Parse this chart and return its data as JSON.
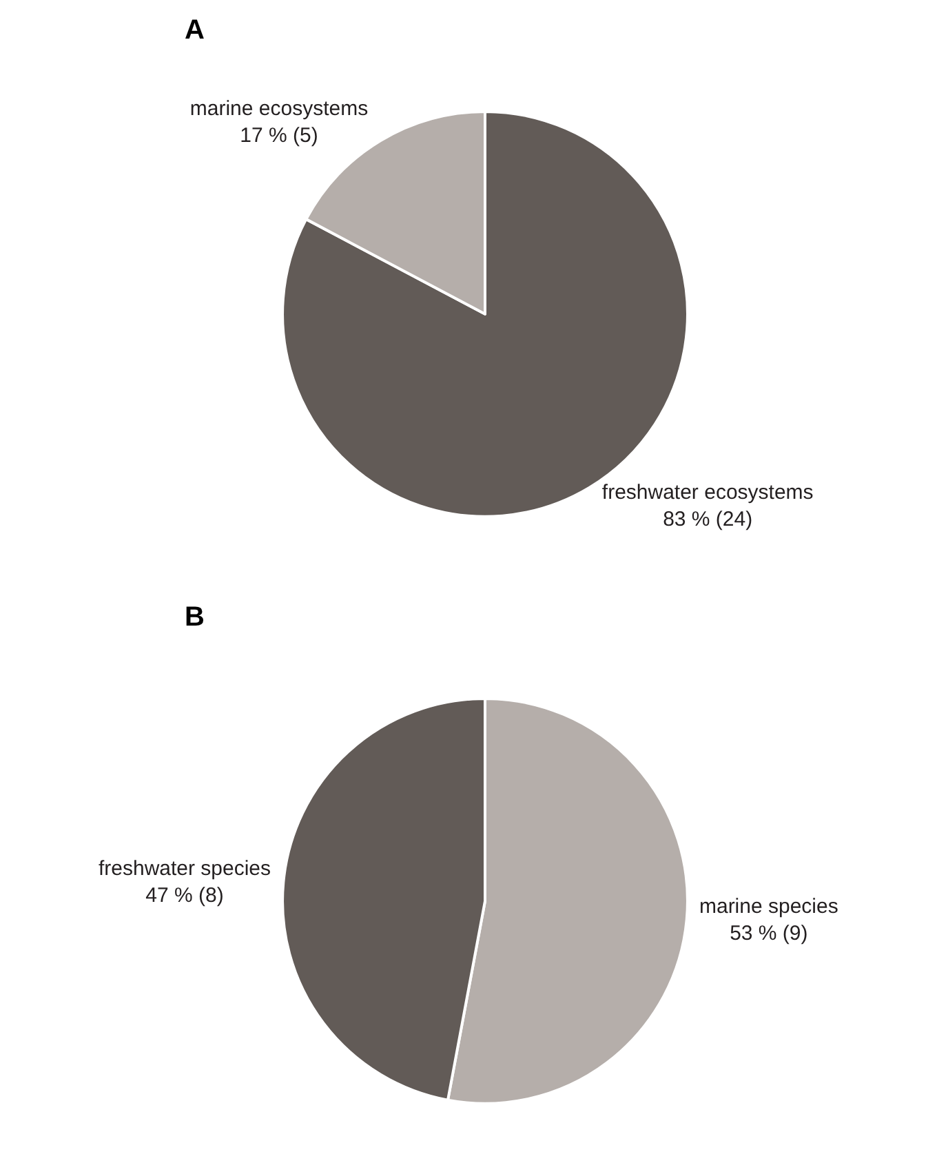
{
  "chart_data": [
    {
      "type": "pie",
      "title": "A",
      "categories": [
        "freshwater ecosystems",
        "marine ecosystems"
      ],
      "values": [
        24,
        5
      ],
      "value_labels": [
        "83 % (24)",
        "17 % (5)"
      ],
      "colors": [
        "#625b57",
        "#b5aeaa"
      ]
    },
    {
      "type": "pie",
      "title": "B",
      "categories": [
        "marine species",
        "freshwater species"
      ],
      "values": [
        9,
        8
      ],
      "value_labels": [
        "53 % (9)",
        "47 % (8)"
      ],
      "colors": [
        "#b5aeaa",
        "#625b57"
      ]
    }
  ]
}
